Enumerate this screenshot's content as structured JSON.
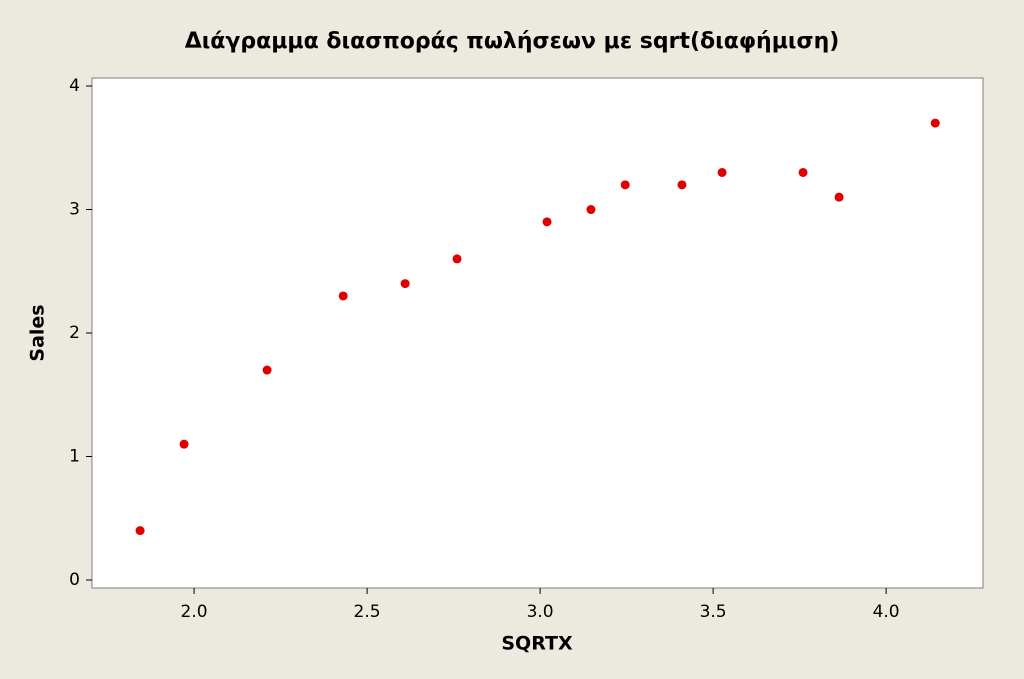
{
  "chart_data": {
    "type": "scatter",
    "title": "Διάγραμμα διασποράς πωλήσεων με sqrt(διαφήμιση)",
    "x_label": "SQRTX",
    "y_label": "Sales",
    "x": [
      1.844,
      1.971,
      2.211,
      2.431,
      2.61,
      2.76,
      3.02,
      3.147,
      3.246,
      3.41,
      3.526,
      3.76,
      3.864,
      4.142
    ],
    "values": [
      0.4,
      1.1,
      1.7,
      2.3,
      2.4,
      2.6,
      2.9,
      3.0,
      3.2,
      3.2,
      3.3,
      3.3,
      3.1,
      3.7
    ],
    "color": "#e00000",
    "xlim": [
      1.705,
      4.28
    ],
    "ylim": [
      -0.065,
      4.065
    ],
    "xticks": [
      {
        "value": 2,
        "label": "2.0"
      },
      {
        "value": 2.5,
        "label": "2.5"
      },
      {
        "value": 3,
        "label": "3.0"
      },
      {
        "value": 3.5,
        "label": "3.5"
      },
      {
        "value": 4,
        "label": "4.0"
      }
    ],
    "yticks": [
      0,
      1,
      2,
      3,
      4
    ]
  }
}
